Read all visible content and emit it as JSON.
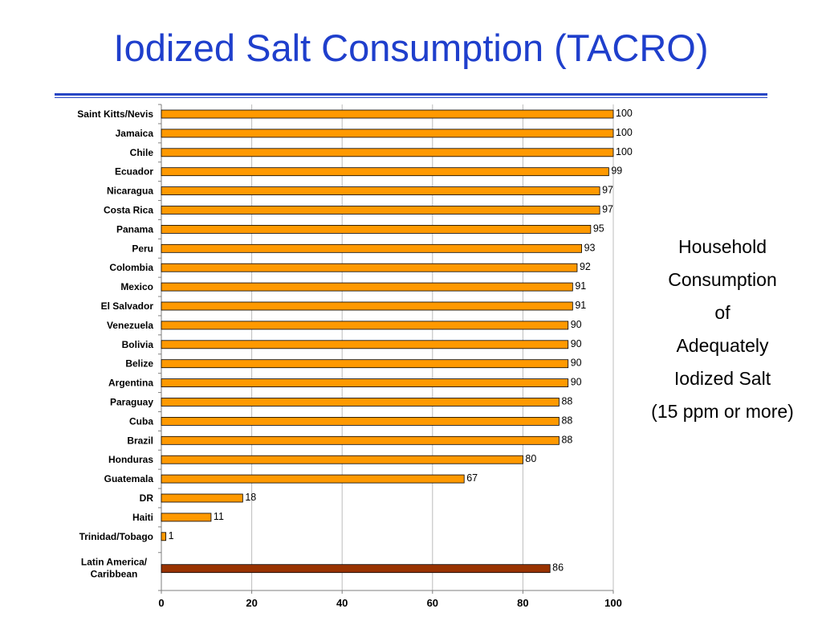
{
  "title": "Iodized Salt Consumption (TACRO)",
  "side_text": [
    "Household",
    "Consumption",
    "of",
    "Adequately",
    "Iodized Salt",
    "(15 ppm or more)"
  ],
  "colors": {
    "title": "#1f3fcc",
    "bar": "#ff9900",
    "bar_highlight": "#993300",
    "rule": "#2746c4"
  },
  "chart_data": {
    "type": "bar",
    "orientation": "horizontal",
    "categories": [
      "Saint Kitts/Nevis",
      "Jamaica",
      "Chile",
      "Ecuador",
      "Nicaragua",
      "Costa Rica",
      "Panama",
      "Peru",
      "Colombia",
      "Mexico",
      "El Salvador",
      "Venezuela",
      "Bolivia",
      "Belize",
      "Argentina",
      "Paraguay",
      "Cuba",
      "Brazil",
      "Honduras",
      "Guatemala",
      "DR",
      "Haiti",
      "Trinidad/Tobago",
      "Latin America/\nCaribbean"
    ],
    "values": [
      100,
      100,
      100,
      99,
      97,
      97,
      95,
      93,
      92,
      91,
      91,
      90,
      90,
      90,
      90,
      88,
      88,
      88,
      80,
      67,
      18,
      11,
      1,
      86
    ],
    "highlight_category": "Latin America/\nCaribbean",
    "xlim": [
      0,
      100
    ],
    "xticks": [
      0,
      20,
      40,
      60,
      80,
      100
    ],
    "grid": "vertical",
    "legend": "none"
  }
}
